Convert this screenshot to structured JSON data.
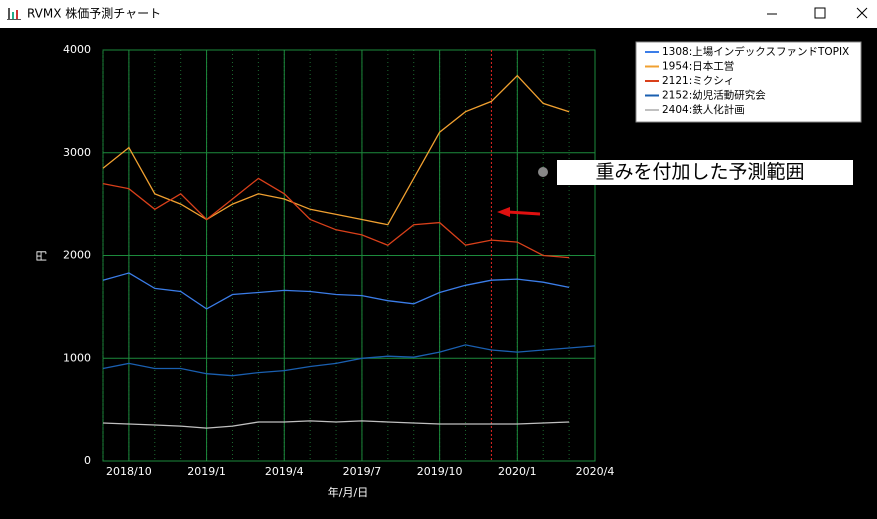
{
  "window": {
    "title": "RVMX 株価予測チャート"
  },
  "chart_data": {
    "type": "line",
    "ylabel": "円",
    "xlabel": "年/月/日",
    "annotation": "重みを付加した予測範囲",
    "forecast_start": "2019/12",
    "x": [
      "2018/9",
      "2018/10",
      "2018/11",
      "2018/12",
      "2019/1",
      "2019/2",
      "2019/3",
      "2019/4",
      "2019/5",
      "2019/6",
      "2019/7",
      "2019/8",
      "2019/9",
      "2019/10",
      "2019/11",
      "2019/12",
      "2020/1",
      "2020/2",
      "2020/3",
      "2020/4"
    ],
    "xlim": [
      "2018/9",
      "2020/4"
    ],
    "xticks": [
      "2018/10",
      "2019/1",
      "2019/4",
      "2019/7",
      "2019/10",
      "2020/1",
      "2020/4"
    ],
    "ylim": [
      0,
      4000
    ],
    "yticks": [
      0,
      1000,
      2000,
      3000,
      4000
    ],
    "grid": true,
    "legend": "upper right",
    "series": [
      {
        "name": "1308:上場インデックスファンドTOPIX",
        "color": "#3b7de8",
        "values": [
          1760,
          1830,
          1680,
          1650,
          1480,
          1620,
          1640,
          1660,
          1650,
          1620,
          1610,
          1560,
          1530,
          1640,
          1710,
          1760,
          1770,
          1740,
          1690,
          null
        ]
      },
      {
        "name": "1954:日本工営",
        "color": "#f0a030",
        "values": [
          2850,
          3050,
          2600,
          2500,
          2350,
          2500,
          2600,
          2550,
          2450,
          2400,
          2350,
          2300,
          2750,
          3200,
          3400,
          3500,
          3750,
          3480,
          3400,
          null
        ]
      },
      {
        "name": "2121:ミクシィ",
        "color": "#d9401a",
        "values": [
          2700,
          2650,
          2450,
          2600,
          2350,
          2550,
          2750,
          2600,
          2350,
          2250,
          2200,
          2100,
          2300,
          2320,
          2100,
          2150,
          2130,
          2000,
          1980,
          null
        ]
      },
      {
        "name": "2152:幼児活動研究会",
        "color": "#1a5fb0",
        "values": [
          900,
          950,
          900,
          900,
          850,
          830,
          860,
          880,
          920,
          950,
          1000,
          1020,
          1010,
          1060,
          1130,
          1080,
          1060,
          1080,
          1100,
          1120
        ]
      },
      {
        "name": "2404:鉄人化計画",
        "color": "#c0c0c0",
        "values": [
          370,
          360,
          350,
          340,
          320,
          340,
          380,
          380,
          390,
          380,
          390,
          380,
          370,
          360,
          360,
          360,
          360,
          370,
          380,
          null
        ]
      }
    ]
  }
}
